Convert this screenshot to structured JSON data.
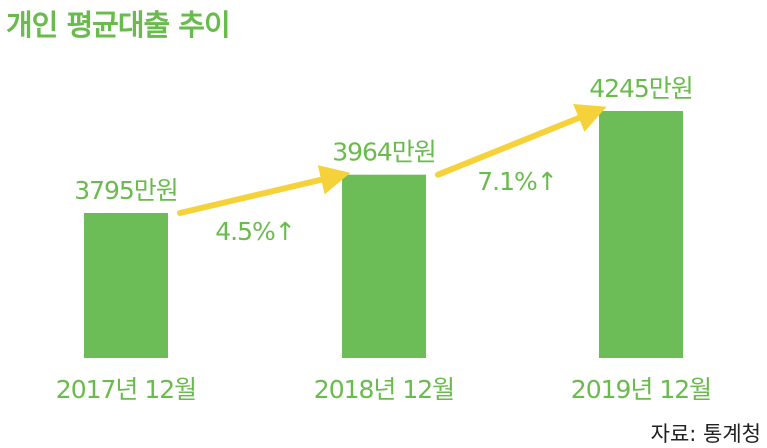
{
  "chart_data": {
    "type": "bar",
    "title": "개인 평균대출 추이",
    "categories": [
      "2017년 12월",
      "2018년 12월",
      "2019년 12월"
    ],
    "values": [
      3795,
      3964,
      4245
    ],
    "value_labels": [
      "3795만원",
      "3964만원",
      "4245만원"
    ],
    "annotations": [
      {
        "from": "2017년 12월",
        "to": "2018년 12월",
        "text": "4.5%↑"
      },
      {
        "from": "2018년 12월",
        "to": "2019년 12월",
        "text": "7.1%↑"
      }
    ],
    "grid": false,
    "legend": "none"
  },
  "source": "자료: 통계청",
  "colors": {
    "bar": "#6cbc57",
    "text": "#6abb4d",
    "arrow": "#f6d23a",
    "source_text": "#222222"
  }
}
